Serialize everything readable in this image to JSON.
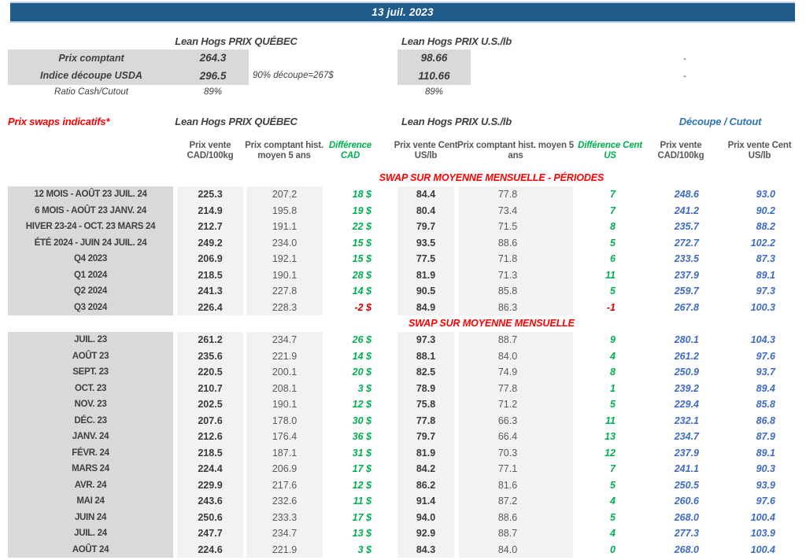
{
  "header": {
    "date": "13 juil. 2023"
  },
  "spot": {
    "quebec_title": "Lean Hogs PRIX QUÉBEC",
    "us_title": "Lean Hogs PRIX U.S./lb",
    "rows": [
      {
        "label": "Prix comptant",
        "cad": "264.3",
        "note": "",
        "us": "98.66",
        "dash": "-",
        "shaded": true
      },
      {
        "label": "Indice découpe USDA",
        "cad": "296.5",
        "note": "90% découpe=267$",
        "us": "110.66",
        "dash": "-",
        "shaded": true
      },
      {
        "label": "Ratio Cash/Cutout",
        "cad": "89%",
        "note": "",
        "us": "89%",
        "dash": "",
        "shaded": false
      }
    ]
  },
  "swaps": {
    "section_label": "Prix swaps indicatifs*",
    "quebec_title": "Lean Hogs PRIX QUÉBEC",
    "us_title": "Lean Hogs PRIX U.S./lb",
    "cutout_title": "Découpe / Cutout",
    "columns": [
      "Prix vente CAD/100kg",
      "Prix comptant hist. moyen 5 ans",
      "Différence CAD",
      "Prix vente Cent US/lb",
      "Prix comptant hist. moyen 5 ans",
      "Différence Cent US",
      "Prix vente CAD/100kg",
      "Prix vente Cent US/lb"
    ],
    "blocks": [
      {
        "title": "SWAP SUR MOYENNE MENSUELLE - PÉRIODES",
        "rows": [
          {
            "label": "12 MOIS - AOÛT 23 JUIL. 24",
            "cad": "225.3",
            "cad_hist": "207.2",
            "diff_cad": "18 $",
            "us": "84.4",
            "us_hist": "77.8",
            "diff_us": "7",
            "cutout_cad": "248.6",
            "cutout_us": "93.0",
            "neg_cad": false,
            "neg_us": false
          },
          {
            "label": "6 MOIS - AOÛT 23 JANV. 24",
            "cad": "214.9",
            "cad_hist": "195.8",
            "diff_cad": "19 $",
            "us": "80.4",
            "us_hist": "73.4",
            "diff_us": "7",
            "cutout_cad": "241.2",
            "cutout_us": "90.2",
            "neg_cad": false,
            "neg_us": false
          },
          {
            "label": "HIVER 23-24 -  OCT. 23 MARS 24",
            "cad": "212.7",
            "cad_hist": "191.1",
            "diff_cad": "22 $",
            "us": "79.7",
            "us_hist": "71.5",
            "diff_us": "8",
            "cutout_cad": "235.7",
            "cutout_us": "88.2",
            "neg_cad": false,
            "neg_us": false
          },
          {
            "label": "ÉTÉ 2024 - JUIN 24 JUIL. 24",
            "cad": "249.2",
            "cad_hist": "234.0",
            "diff_cad": "15 $",
            "us": "93.5",
            "us_hist": "88.6",
            "diff_us": "5",
            "cutout_cad": "272.7",
            "cutout_us": "102.2",
            "neg_cad": false,
            "neg_us": false
          },
          {
            "label": "Q4 2023",
            "cad": "206.9",
            "cad_hist": "192.1",
            "diff_cad": "15 $",
            "us": "77.5",
            "us_hist": "71.8",
            "diff_us": "6",
            "cutout_cad": "233.5",
            "cutout_us": "87.3",
            "neg_cad": false,
            "neg_us": false
          },
          {
            "label": "Q1 2024",
            "cad": "218.5",
            "cad_hist": "190.1",
            "diff_cad": "28 $",
            "us": "81.9",
            "us_hist": "71.3",
            "diff_us": "11",
            "cutout_cad": "237.9",
            "cutout_us": "89.1",
            "neg_cad": false,
            "neg_us": false
          },
          {
            "label": "Q2 2024",
            "cad": "241.3",
            "cad_hist": "227.8",
            "diff_cad": "14 $",
            "us": "90.5",
            "us_hist": "85.8",
            "diff_us": "5",
            "cutout_cad": "259.7",
            "cutout_us": "97.3",
            "neg_cad": false,
            "neg_us": false
          },
          {
            "label": "Q3 2024",
            "cad": "226.4",
            "cad_hist": "228.3",
            "diff_cad": "-2 $",
            "us": "84.9",
            "us_hist": "86.3",
            "diff_us": "-1",
            "cutout_cad": "267.8",
            "cutout_us": "100.3",
            "neg_cad": true,
            "neg_us": true
          }
        ]
      },
      {
        "title": "SWAP SUR MOYENNE MENSUELLE",
        "rows": [
          {
            "label": "JUIL. 23",
            "cad": "261.2",
            "cad_hist": "234.7",
            "diff_cad": "26 $",
            "us": "97.3",
            "us_hist": "88.7",
            "diff_us": "9",
            "cutout_cad": "280.1",
            "cutout_us": "104.3",
            "neg_cad": false,
            "neg_us": false
          },
          {
            "label": "AOÛT 23",
            "cad": "235.6",
            "cad_hist": "221.9",
            "diff_cad": "14 $",
            "us": "88.1",
            "us_hist": "84.0",
            "diff_us": "4",
            "cutout_cad": "261.2",
            "cutout_us": "97.6",
            "neg_cad": false,
            "neg_us": false
          },
          {
            "label": "SEPT. 23",
            "cad": "220.5",
            "cad_hist": "200.1",
            "diff_cad": "20 $",
            "us": "82.5",
            "us_hist": "74.9",
            "diff_us": "8",
            "cutout_cad": "250.9",
            "cutout_us": "93.7",
            "neg_cad": false,
            "neg_us": false
          },
          {
            "label": "OCT. 23",
            "cad": "210.7",
            "cad_hist": "208.1",
            "diff_cad": "3 $",
            "us": "78.9",
            "us_hist": "77.8",
            "diff_us": "1",
            "cutout_cad": "239.2",
            "cutout_us": "89.4",
            "neg_cad": false,
            "neg_us": false
          },
          {
            "label": "NOV. 23",
            "cad": "202.5",
            "cad_hist": "190.1",
            "diff_cad": "12 $",
            "us": "75.8",
            "us_hist": "71.2",
            "diff_us": "5",
            "cutout_cad": "229.4",
            "cutout_us": "85.8",
            "neg_cad": false,
            "neg_us": false
          },
          {
            "label": "DÉC. 23",
            "cad": "207.6",
            "cad_hist": "178.0",
            "diff_cad": "30 $",
            "us": "77.8",
            "us_hist": "66.3",
            "diff_us": "11",
            "cutout_cad": "232.1",
            "cutout_us": "86.8",
            "neg_cad": false,
            "neg_us": false
          },
          {
            "label": "JANV. 24",
            "cad": "212.6",
            "cad_hist": "176.4",
            "diff_cad": "36 $",
            "us": "79.7",
            "us_hist": "66.4",
            "diff_us": "13",
            "cutout_cad": "234.7",
            "cutout_us": "87.9",
            "neg_cad": false,
            "neg_us": false
          },
          {
            "label": "FÉVR. 24",
            "cad": "218.5",
            "cad_hist": "187.1",
            "diff_cad": "31 $",
            "us": "81.9",
            "us_hist": "70.3",
            "diff_us": "12",
            "cutout_cad": "237.9",
            "cutout_us": "89.1",
            "neg_cad": false,
            "neg_us": false
          },
          {
            "label": "MARS 24",
            "cad": "224.4",
            "cad_hist": "206.9",
            "diff_cad": "17 $",
            "us": "84.2",
            "us_hist": "77.1",
            "diff_us": "7",
            "cutout_cad": "241.1",
            "cutout_us": "90.3",
            "neg_cad": false,
            "neg_us": false
          },
          {
            "label": "AVR. 24",
            "cad": "229.9",
            "cad_hist": "217.6",
            "diff_cad": "12 $",
            "us": "86.2",
            "us_hist": "81.6",
            "diff_us": "5",
            "cutout_cad": "250.5",
            "cutout_us": "93.9",
            "neg_cad": false,
            "neg_us": false
          },
          {
            "label": "MAI 24",
            "cad": "243.6",
            "cad_hist": "232.6",
            "diff_cad": "11 $",
            "us": "91.4",
            "us_hist": "87.2",
            "diff_us": "4",
            "cutout_cad": "260.6",
            "cutout_us": "97.6",
            "neg_cad": false,
            "neg_us": false
          },
          {
            "label": "JUIN 24",
            "cad": "250.6",
            "cad_hist": "233.3",
            "diff_cad": "17 $",
            "us": "94.0",
            "us_hist": "88.6",
            "diff_us": "5",
            "cutout_cad": "268.0",
            "cutout_us": "100.4",
            "neg_cad": false,
            "neg_us": false
          },
          {
            "label": "JUIL. 24",
            "cad": "247.7",
            "cad_hist": "234.7",
            "diff_cad": "13 $",
            "us": "92.9",
            "us_hist": "88.7",
            "diff_us": "4",
            "cutout_cad": "277.3",
            "cutout_us": "103.9",
            "neg_cad": false,
            "neg_us": false
          },
          {
            "label": "AOÛT 24",
            "cad": "224.6",
            "cad_hist": "221.9",
            "diff_cad": "3 $",
            "us": "84.3",
            "us_hist": "84.0",
            "diff_us": "0",
            "cutout_cad": "268.0",
            "cutout_us": "100.4",
            "neg_cad": false,
            "neg_us": false
          }
        ]
      }
    ]
  }
}
